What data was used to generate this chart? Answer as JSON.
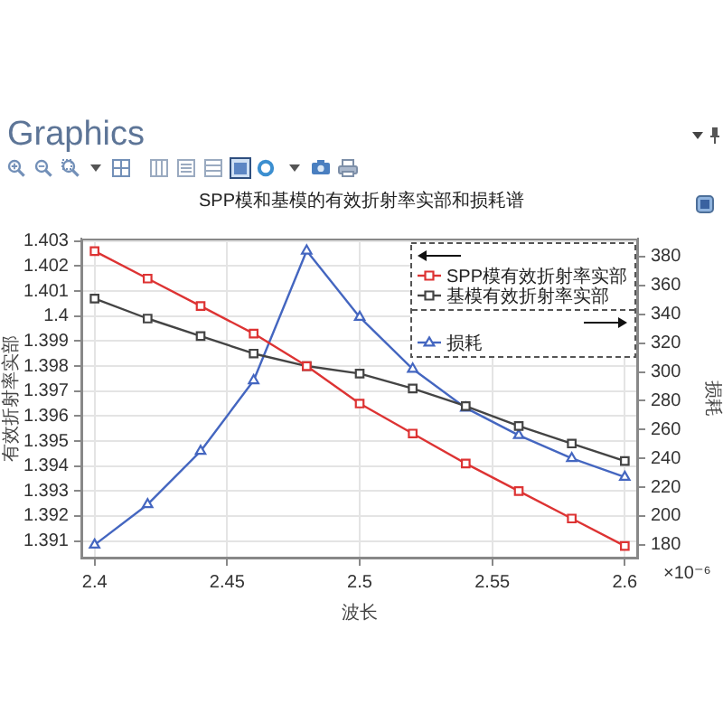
{
  "chart_data": {
    "type": "line",
    "title": "SPP模和基模的有效折射率实部和损耗谱",
    "xlabel": "波长",
    "ylabel": "有效折射率实部",
    "y2label": "损耗",
    "annotations": [
      "Graphics",
      "×10⁻⁶"
    ],
    "x": [
      2.4,
      2.42,
      2.44,
      2.46,
      2.48,
      2.5,
      2.52,
      2.54,
      2.56,
      2.58,
      2.6
    ],
    "series": [
      {
        "name": "SPP模有效折射率实部",
        "color": "#dd3333",
        "marker": "square",
        "values": [
          1.4026,
          1.4015,
          1.4004,
          1.3993,
          1.398,
          1.3965,
          1.3953,
          1.3941,
          1.393,
          1.3919,
          1.3908
        ]
      },
      {
        "name": "基模有效折射率实部",
        "color": "#444444",
        "marker": "square",
        "values": [
          1.4007,
          1.3999,
          1.3992,
          1.3985,
          1.398,
          1.3977,
          1.3971,
          1.3964,
          1.3956,
          1.3949,
          1.3942
        ]
      },
      {
        "name": "损耗",
        "color": "#4466c0",
        "marker": "triangle",
        "axis": "y2",
        "values": [
          180,
          208,
          245,
          294,
          384,
          338,
          302,
          275,
          256,
          240,
          227
        ]
      }
    ],
    "xlim": [
      2.395,
      2.605
    ],
    "xticks": [
      2.4,
      2.45,
      2.5,
      2.55,
      2.6
    ],
    "ylim": [
      1.3903,
      1.4031
    ],
    "yticks": [
      1.391,
      1.392,
      1.393,
      1.394,
      1.395,
      1.396,
      1.397,
      1.398,
      1.399,
      1.4,
      1.401,
      1.402,
      1.403
    ],
    "y2lim": [
      170.5,
      392.5
    ],
    "y2ticks": [
      180,
      200,
      220,
      240,
      260,
      280,
      300,
      320,
      340,
      360,
      380
    ],
    "grid": true,
    "legend": "top right"
  }
}
